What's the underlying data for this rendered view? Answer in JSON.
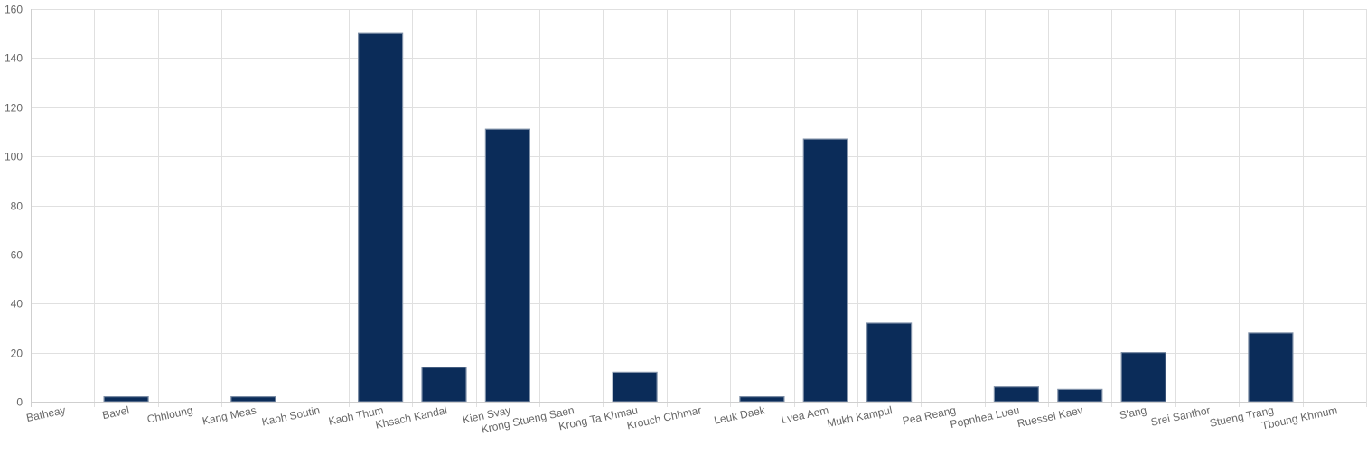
{
  "chart_data": {
    "type": "bar",
    "categories": [
      "Batheay",
      "Bavel",
      "Chhloung",
      "Kang Meas",
      "Kaoh Soutin",
      "Kaoh Thum",
      "Khsach Kandal",
      "Kien Svay",
      "Krong Stueng Saen",
      "Krong Ta Khmau",
      "Krouch Chhmar",
      "Leuk Daek",
      "Lvea Aem",
      "Mukh Kampul",
      "Pea Reang",
      "Popnhea Lueu",
      "Ruessei Kaev",
      "S'ang",
      "Srei Santhor",
      "Stueng Trang",
      "Tboung Khmum"
    ],
    "values": [
      0,
      2,
      0,
      2,
      0,
      150,
      14,
      111,
      0,
      12,
      0,
      2,
      107,
      32,
      0,
      6,
      5,
      20,
      0,
      28,
      0
    ],
    "yticks": [
      "0",
      "20",
      "40",
      "60",
      "80",
      "100",
      "120",
      "140",
      "160"
    ],
    "ylim": [
      0,
      160
    ],
    "grid": true,
    "colors": {
      "bar": "#0b2c59",
      "bar_border": "#7d8ea6",
      "grid": "#e0e0e0",
      "tick_text": "#666666"
    }
  }
}
